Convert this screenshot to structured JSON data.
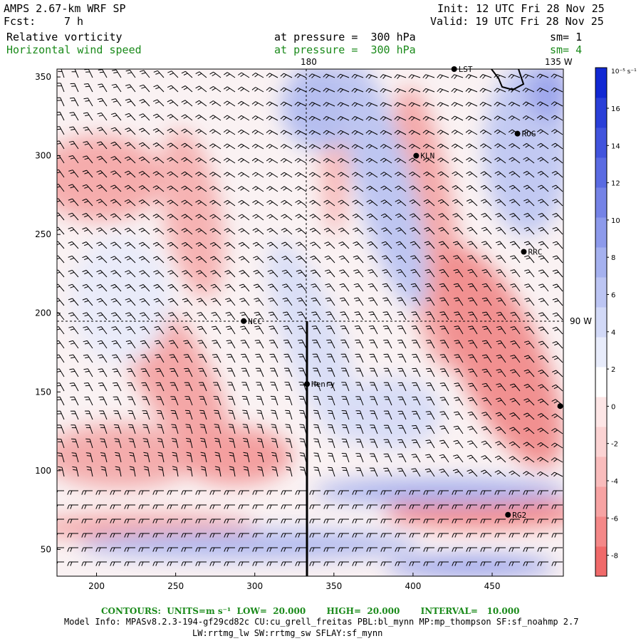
{
  "header": {
    "model": "AMPS 2.67-km WRF SP",
    "fcst_label": "Fcst:",
    "fcst_value": "7 h",
    "init": "Init: 12 UTC Fri 28 Nov 25",
    "valid": "Valid: 19 UTC Fri 28 Nov 25",
    "field1_name": "Relative vorticity",
    "field1_level": "at pressure =  300 hPa",
    "field1_sm": "sm= 1",
    "field2_name": "Horizontal wind speed",
    "field2_level": "at pressure =  300 hPa",
    "field2_sm": "sm= 4"
  },
  "map": {
    "x_ticks": [
      "200",
      "250",
      "300",
      "350",
      "400",
      "450"
    ],
    "x_tick_values": [
      200,
      250,
      300,
      350,
      400,
      450
    ],
    "y_ticks": [
      "50",
      "100",
      "150",
      "200",
      "250",
      "300",
      "350"
    ],
    "y_tick_values": [
      50,
      100,
      150,
      200,
      250,
      300,
      350
    ],
    "x_range": [
      175,
      495
    ],
    "y_range": [
      33,
      355
    ],
    "meridian_180": "180",
    "meridian_135w": "135 W",
    "lat_90w": "90 W",
    "stations": [
      {
        "name": "LST",
        "x": 426,
        "y": 355
      },
      {
        "name": "ROG",
        "x": 466,
        "y": 314
      },
      {
        "name": "KLN",
        "x": 402,
        "y": 300
      },
      {
        "name": "RRC",
        "x": 470,
        "y": 239
      },
      {
        "name": "NCC",
        "x": 293,
        "y": 195
      },
      {
        "name": "Henry",
        "x": 333,
        "y": 155
      },
      {
        "name": "",
        "x": 493,
        "y": 141
      },
      {
        "name": "RG2",
        "x": 460,
        "y": 72
      }
    ]
  },
  "colorbar": {
    "unit": "10⁻⁵ s⁻¹",
    "labels": [
      "16",
      "14",
      "12",
      "10",
      "8",
      "6",
      "4",
      "2",
      "0",
      "-2",
      "-4",
      "-6",
      "-8"
    ],
    "colors": [
      "#f06a6a",
      "#f48888",
      "#f7a3a3",
      "#f9bcbc",
      "#fbd3d3",
      "#fde6e6",
      "#ffffff",
      "#e8ecfb",
      "#d2d9f7",
      "#bcc5f3",
      "#a5b1ef",
      "#8d9aeb",
      "#7583e6",
      "#5a6be2",
      "#4154dd",
      "#2a3fd8",
      "#1128d3"
    ]
  },
  "footer": {
    "contours": "CONTOURS:  UNITS=m s⁻¹  LOW=  20.000       HIGH=  20.000       INTERVAL=   10.000",
    "model_info": "Model Info: MPASv8.2.3-194-gf29cd82c CU:cu_grell_freitas PBL:bl_mynn MP:mp_thompson SF:sf_noahmp 2.7",
    "model_info2": "LW:rrtmg_lw SW:rrtmg_sw SFLAY:sf_mynn"
  }
}
